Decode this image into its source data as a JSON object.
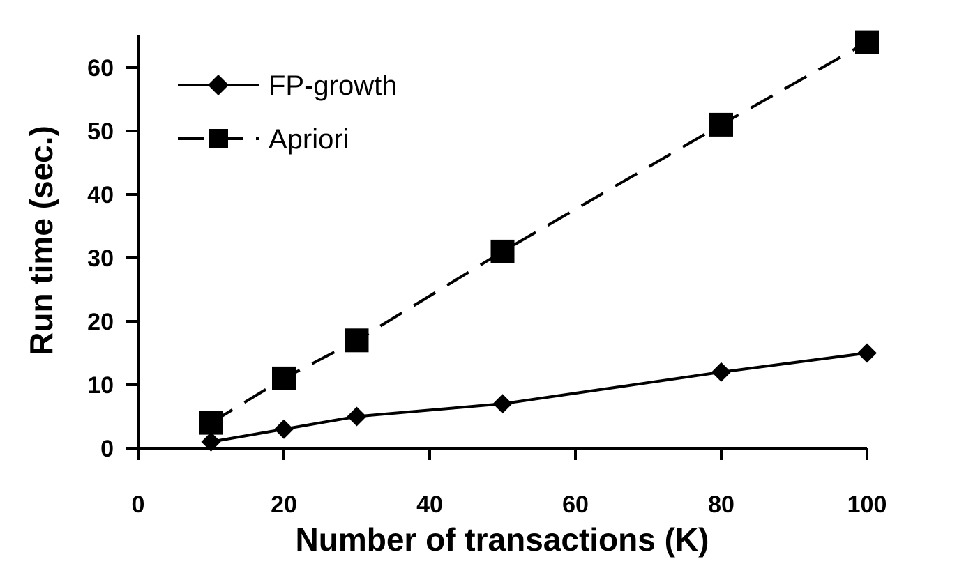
{
  "chart_data": {
    "type": "line",
    "title": "",
    "xlabel": "Number of transactions (K)",
    "ylabel": "Run time (sec.)",
    "xlim": [
      0,
      100
    ],
    "ylim": [
      0,
      60
    ],
    "x_ticks": [
      0,
      20,
      40,
      60,
      80,
      100
    ],
    "y_ticks": [
      0,
      10,
      20,
      30,
      40,
      50,
      60
    ],
    "grid": false,
    "legend_position": "top-left",
    "series": [
      {
        "name": "FP-growth",
        "line_style": "solid",
        "marker": "diamond",
        "color": "#000000",
        "x": [
          10,
          20,
          30,
          50,
          80,
          100
        ],
        "y": [
          1,
          3,
          5,
          7,
          12,
          15
        ]
      },
      {
        "name": "Apriori",
        "line_style": "dashed",
        "marker": "square",
        "color": "#000000",
        "x": [
          10,
          20,
          30,
          50,
          80,
          100
        ],
        "y": [
          4,
          11,
          17,
          31,
          51,
          64
        ]
      }
    ]
  }
}
